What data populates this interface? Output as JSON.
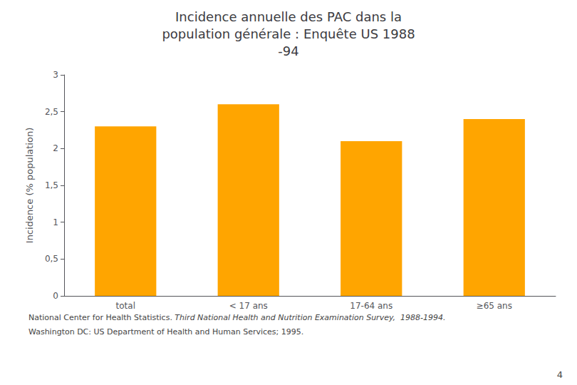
{
  "chart_data": {
    "type": "bar",
    "title": "Incidence annuelle des PAC dans la\npopulation générale : Enquête US 1988\n-94",
    "y_label": "Incidence (% population)",
    "categories": [
      "total",
      "< 17 ans",
      "17-64 ans",
      "≥65 ans"
    ],
    "values": [
      2.3,
      2.6,
      2.1,
      2.4
    ],
    "color": "#FFA500",
    "ylim": [
      0,
      3
    ],
    "yticks": [
      0,
      {
        "value": 0.5,
        "label": "0,5"
      },
      1,
      {
        "value": 1.5,
        "label": "1,5"
      },
      2,
      {
        "value": 2.5,
        "label": "2,5"
      },
      3
    ],
    "grid": false,
    "annotations": [
      "National Center for Health Statistics. ",
      "Third National Health and Nutrition Examination Survey,  1988-1994.",
      "Washington DC: US Department of Health and Human Services; 1995.",
      "4"
    ]
  }
}
